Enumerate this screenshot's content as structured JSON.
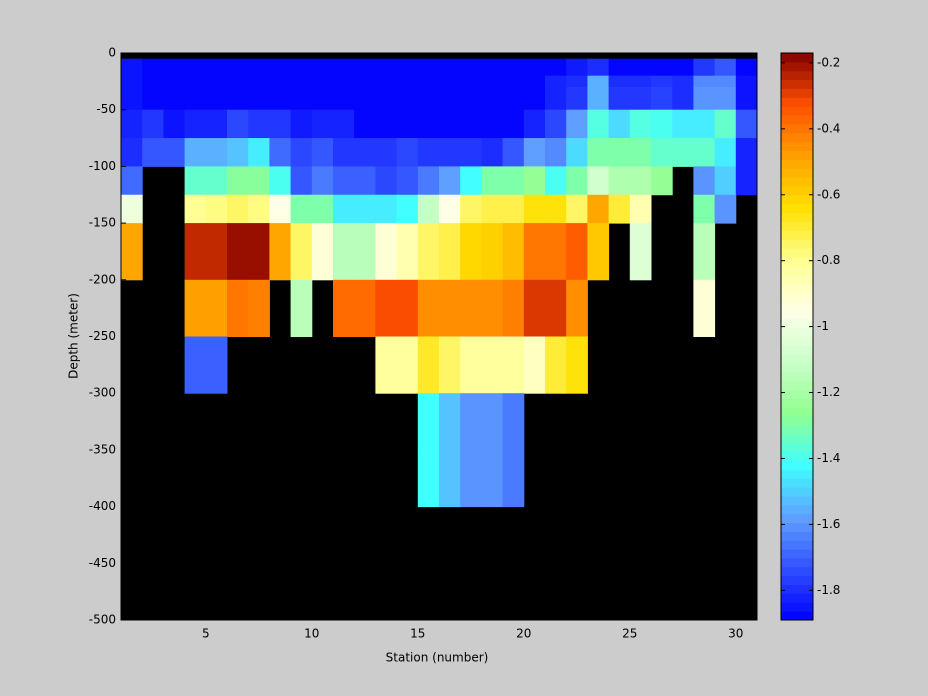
{
  "chart_data": {
    "type": "heatmap",
    "xlabel": "Station (number)",
    "ylabel": "Depth (meter)",
    "x_edges": [
      1,
      2,
      3,
      4,
      5,
      6,
      7,
      8,
      9,
      10,
      11,
      12,
      13,
      14,
      15,
      16,
      17,
      18,
      19,
      20,
      21,
      22,
      23,
      24,
      25,
      26,
      27,
      28,
      29,
      30,
      31
    ],
    "y_edges": [
      0,
      -5,
      -20,
      -30,
      -50,
      -75,
      -100,
      -125,
      -150,
      -200,
      -250,
      -300,
      -350,
      -400,
      -500
    ],
    "values": [
      [
        null,
        null,
        null,
        null,
        null,
        null,
        null,
        null,
        null,
        null,
        null,
        null,
        null,
        null,
        null,
        null,
        null,
        null,
        null,
        null,
        null,
        null,
        null,
        null,
        null,
        null,
        null,
        null,
        null,
        null
      ],
      [
        -1.85,
        -1.88,
        -1.88,
        -1.88,
        -1.88,
        -1.88,
        -1.88,
        -1.88,
        -1.88,
        -1.88,
        -1.88,
        -1.88,
        -1.88,
        -1.88,
        -1.88,
        -1.88,
        -1.88,
        -1.88,
        -1.88,
        -1.88,
        -1.88,
        -1.84,
        -1.8,
        -1.88,
        -1.88,
        -1.88,
        -1.88,
        -1.78,
        -1.72,
        -1.88
      ],
      [
        -1.85,
        -1.88,
        -1.88,
        -1.88,
        -1.88,
        -1.88,
        -1.88,
        -1.88,
        -1.88,
        -1.88,
        -1.88,
        -1.88,
        -1.88,
        -1.88,
        -1.88,
        -1.88,
        -1.88,
        -1.88,
        -1.88,
        -1.88,
        -1.82,
        -1.8,
        -1.55,
        -1.8,
        -1.8,
        -1.78,
        -1.8,
        -1.62,
        -1.62,
        -1.85
      ],
      [
        -1.85,
        -1.88,
        -1.88,
        -1.88,
        -1.88,
        -1.88,
        -1.88,
        -1.88,
        -1.88,
        -1.88,
        -1.88,
        -1.88,
        -1.88,
        -1.88,
        -1.88,
        -1.88,
        -1.88,
        -1.88,
        -1.88,
        -1.88,
        -1.82,
        -1.78,
        -1.55,
        -1.78,
        -1.78,
        -1.76,
        -1.8,
        -1.6,
        -1.6,
        -1.85
      ],
      [
        -1.82,
        -1.78,
        -1.85,
        -1.82,
        -1.82,
        -1.75,
        -1.78,
        -1.78,
        -1.84,
        -1.82,
        -1.82,
        -1.88,
        -1.88,
        -1.88,
        -1.88,
        -1.88,
        -1.88,
        -1.88,
        -1.88,
        -1.82,
        -1.75,
        -1.58,
        -1.38,
        -1.48,
        -1.38,
        -1.4,
        -1.45,
        -1.45,
        -1.35,
        -1.72
      ],
      [
        -1.8,
        -1.72,
        -1.72,
        -1.55,
        -1.55,
        -1.52,
        -1.45,
        -1.68,
        -1.75,
        -1.72,
        -1.78,
        -1.78,
        -1.78,
        -1.75,
        -1.78,
        -1.78,
        -1.78,
        -1.8,
        -1.72,
        -1.58,
        -1.62,
        -1.48,
        -1.3,
        -1.3,
        -1.3,
        -1.35,
        -1.35,
        -1.35,
        -1.45,
        -1.82
      ],
      [
        -1.68,
        null,
        null,
        -1.35,
        -1.35,
        -1.28,
        -1.28,
        -1.4,
        -1.72,
        -1.65,
        -1.7,
        -1.7,
        -1.75,
        -1.72,
        -1.65,
        -1.58,
        -1.42,
        -1.3,
        -1.3,
        -1.25,
        -1.4,
        -1.3,
        -1.08,
        -1.18,
        -1.18,
        -1.25,
        null,
        -1.6,
        -1.5,
        -1.82
      ],
      [
        -1.0,
        null,
        null,
        -0.8,
        -0.78,
        -0.75,
        -0.78,
        -0.95,
        -1.3,
        -1.3,
        -1.45,
        -1.45,
        -1.45,
        -1.42,
        -1.12,
        -0.95,
        -0.75,
        -0.72,
        -0.72,
        -0.65,
        -0.65,
        -0.75,
        -0.5,
        -0.7,
        -0.85,
        null,
        null,
        -1.3,
        -1.6,
        null
      ],
      [
        -0.5,
        null,
        null,
        -0.25,
        -0.25,
        -0.2,
        -0.2,
        -0.5,
        -0.75,
        -0.92,
        -1.15,
        -1.15,
        -0.92,
        -0.85,
        -0.75,
        -0.72,
        -0.62,
        -0.6,
        -0.55,
        -0.4,
        -0.4,
        -0.35,
        -0.58,
        null,
        -1.05,
        null,
        null,
        -1.15,
        null,
        null
      ],
      [
        null,
        null,
        null,
        -0.48,
        -0.48,
        -0.4,
        -0.42,
        null,
        -1.15,
        null,
        -0.38,
        -0.38,
        -0.32,
        -0.32,
        -0.45,
        -0.45,
        -0.45,
        -0.45,
        -0.42,
        -0.28,
        -0.28,
        -0.45,
        null,
        null,
        null,
        null,
        null,
        -0.92,
        null,
        null
      ],
      [
        null,
        null,
        null,
        -1.7,
        -1.7,
        null,
        null,
        null,
        null,
        null,
        null,
        null,
        -0.82,
        -0.82,
        -0.68,
        -0.75,
        -0.82,
        -0.82,
        -0.82,
        -0.88,
        -0.7,
        -0.65,
        null,
        null,
        null,
        null,
        null,
        null,
        null,
        null
      ],
      [
        null,
        null,
        null,
        null,
        null,
        null,
        null,
        null,
        null,
        null,
        null,
        null,
        null,
        null,
        -1.42,
        -1.52,
        -1.6,
        -1.6,
        -1.65,
        null,
        null,
        null,
        null,
        null,
        null,
        null,
        null,
        null,
        null,
        null
      ],
      [
        null,
        null,
        null,
        null,
        null,
        null,
        null,
        null,
        null,
        null,
        null,
        null,
        null,
        null,
        -1.42,
        -1.52,
        -1.6,
        -1.6,
        -1.65,
        null,
        null,
        null,
        null,
        null,
        null,
        null,
        null,
        null,
        null,
        null
      ],
      [
        null,
        null,
        null,
        null,
        null,
        null,
        null,
        null,
        null,
        null,
        null,
        null,
        null,
        null,
        null,
        null,
        null,
        null,
        null,
        null,
        null,
        null,
        null,
        null,
        null,
        null,
        null,
        null,
        null,
        null
      ]
    ],
    "xlim": [
      1,
      31
    ],
    "xticks": [
      5,
      10,
      15,
      20,
      25,
      30
    ],
    "ylim": [
      -500,
      0
    ],
    "yticks": [
      0,
      -50,
      -100,
      -150,
      -200,
      -250,
      -300,
      -350,
      -400,
      -450,
      -500
    ],
    "clim": [
      -1.89,
      -0.17
    ],
    "cticks": [
      -1.8,
      -1.6,
      -1.4,
      -1.2,
      -1,
      -0.8,
      -0.6,
      -0.4,
      -0.2
    ],
    "colormap": [
      "#0000ff",
      "#3050ff",
      "#60a0ff",
      "#40ffff",
      "#90ff90",
      "#c8ffc8",
      "#ffffe8",
      "#ffff90",
      "#ffe000",
      "#ffa000",
      "#ff5000",
      "#800000"
    ],
    "background": "#000000"
  }
}
